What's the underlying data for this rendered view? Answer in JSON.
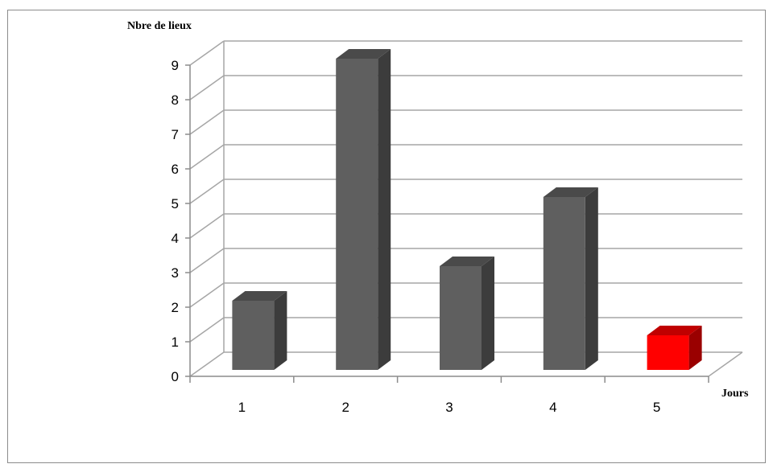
{
  "chart_data": {
    "type": "bar",
    "categories": [
      "1",
      "2",
      "3",
      "4",
      "5"
    ],
    "values": [
      2,
      9,
      3,
      5,
      1
    ],
    "highlight_index": 4,
    "ylabel": "Nbre de lieux",
    "xlabel": "Jours",
    "ylim": [
      0,
      9
    ],
    "yticks": [
      "0",
      "1",
      "2",
      "3",
      "4",
      "5",
      "6",
      "7",
      "8",
      "9"
    ],
    "grid": true,
    "three_d": true,
    "colors": {
      "bar_front": "#5f5f5f",
      "bar_top": "#4a4a4a",
      "bar_side": "#3c3c3c",
      "highlight_front": "#ff0000",
      "highlight_top": "#c00000",
      "highlight_side": "#9a0000",
      "grid": "#a6a6a6",
      "axis": "#8c8c8c"
    }
  }
}
